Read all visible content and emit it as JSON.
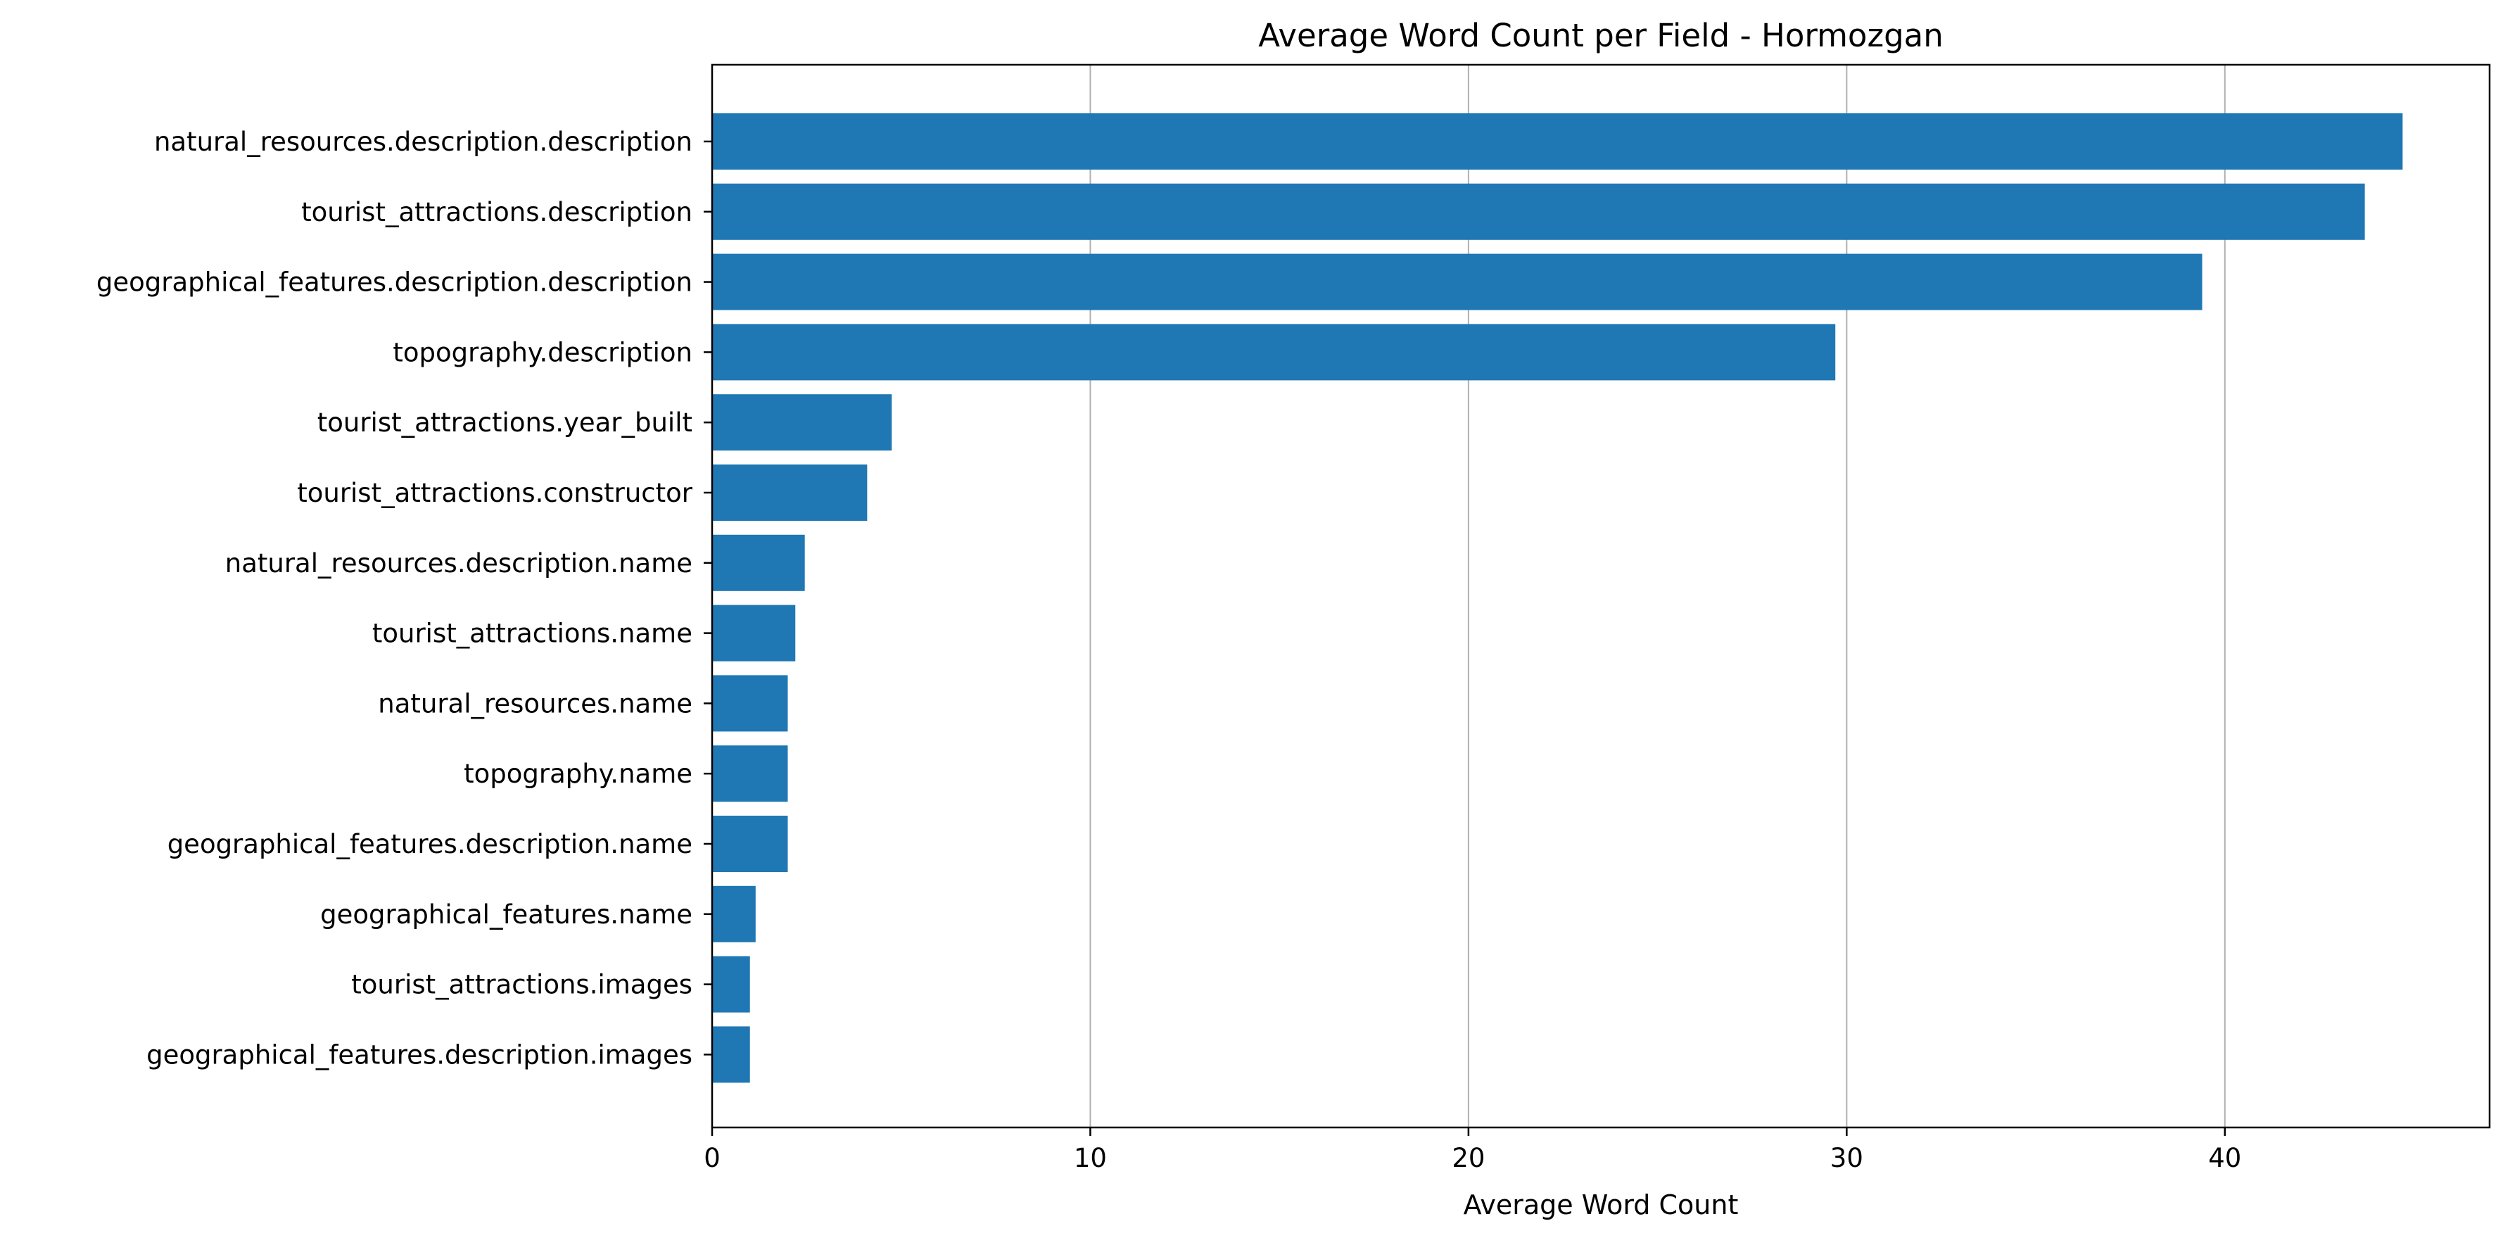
{
  "chart_data": {
    "type": "bar",
    "orientation": "horizontal",
    "title": "Average Word Count per Field - Hormozgan",
    "xlabel": "Average Word Count",
    "ylabel": "",
    "xlim": [
      0,
      47
    ],
    "x_ticks": [
      0,
      10,
      20,
      30,
      40
    ],
    "grid": "vertical",
    "bar_color": "#1f77b4",
    "categories": [
      "natural_resources.description.description",
      "tourist_attractions.description",
      "geographical_features.description.description",
      "topography.description",
      "tourist_attractions.year_built",
      "tourist_attractions.constructor",
      "natural_resources.description.name",
      "tourist_attractions.name",
      "natural_resources.name",
      "topography.name",
      "geographical_features.description.name",
      "geographical_features.name",
      "tourist_attractions.images",
      "geographical_features.description.images"
    ],
    "values": [
      44.7,
      43.7,
      39.4,
      29.7,
      4.75,
      4.1,
      2.45,
      2.2,
      2.0,
      2.0,
      2.0,
      1.15,
      1.0,
      1.0
    ]
  }
}
